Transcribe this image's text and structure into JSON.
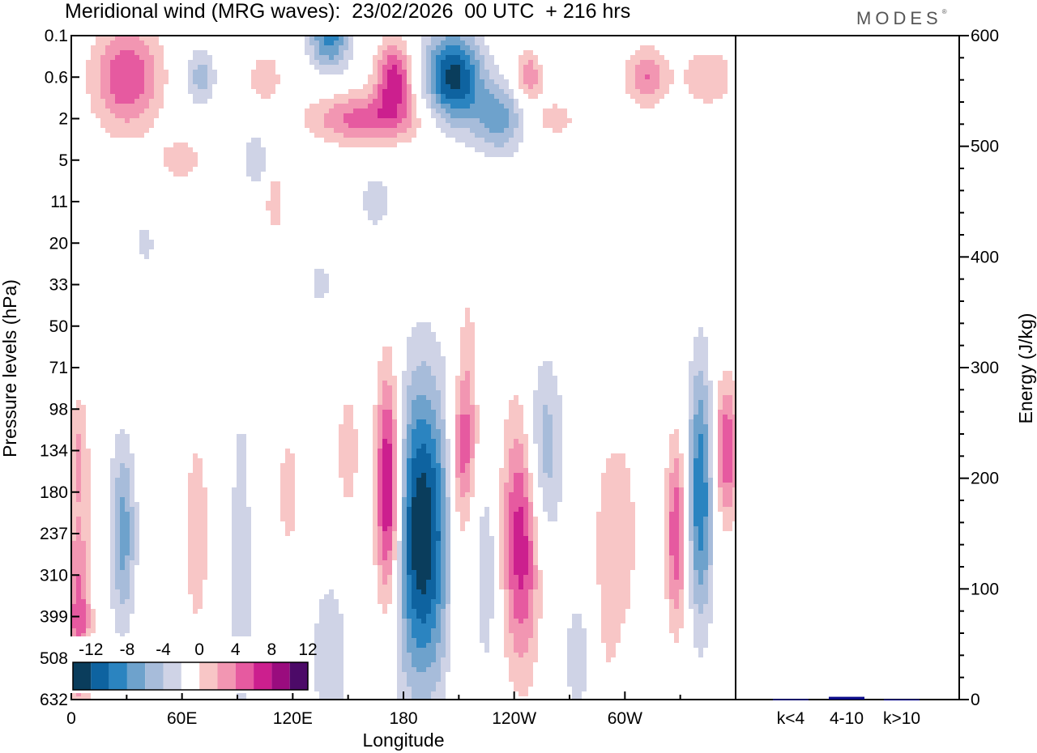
{
  "header": {
    "title": "Meridional wind (MRG waves):  23/02/2026  00 UTC  + 216 hrs",
    "logo_text": "MODES",
    "logo_mark": "®"
  },
  "colors": {
    "neg": [
      "#0a3d5c",
      "#0e63a0",
      "#2b84c0",
      "#6ea2cc",
      "#a7bcda",
      "#cfd3e6"
    ],
    "zero": "#ffffff",
    "pos": [
      "#f8c6c6",
      "#f296b2",
      "#e65aa0",
      "#cc1f8e",
      "#9a0c7e",
      "#4c0a68"
    ],
    "bar": "#0d0d8a"
  },
  "chart_data": [
    {
      "type": "heatmap",
      "title": "Meridional wind (MRG waves):  23/02/2026  00 UTC  + 216 hrs",
      "xlabel": "Longitude",
      "ylabel": "Pressure levels (hPa)",
      "x_ticks": [
        "0",
        "60E",
        "120E",
        "180",
        "120W",
        "60W"
      ],
      "x_tick_degrees": [
        0,
        60,
        120,
        180,
        240,
        300
      ],
      "xlim": [
        0,
        360
      ],
      "y_ticks": [
        "0.1",
        "0.6",
        "2",
        "5",
        "11",
        "20",
        "33",
        "50",
        "71",
        "98",
        "134",
        "180",
        "237",
        "310",
        "399",
        "508",
        "632"
      ],
      "colorbar": {
        "labels": [
          "-12",
          "-8",
          "-4",
          "0",
          "4",
          "8",
          "12"
        ],
        "levels": [
          -14,
          -12,
          -10,
          -8,
          -6,
          -4,
          -2,
          0,
          2,
          4,
          6,
          8,
          10,
          12
        ],
        "n_boxes": 13
      },
      "features": [
        {
          "lon": 190,
          "level": "237",
          "value": -14,
          "sx": 11,
          "sy": 2.6
        },
        {
          "lon": 207,
          "level": "0.6",
          "value": -13,
          "sx": 11,
          "sy": 0.8
        },
        {
          "lon": 172,
          "level": "180",
          "value": 13,
          "sx": 5,
          "sy": 2.0
        },
        {
          "lon": 244,
          "level": "237",
          "value": 10,
          "sx": 7,
          "sy": 2.2
        },
        {
          "lon": 341,
          "level": "180",
          "value": -10,
          "sx": 5,
          "sy": 2.2
        },
        {
          "lon": 328,
          "level": "237",
          "value": 8,
          "sx": 4,
          "sy": 1.6
        },
        {
          "lon": 355,
          "level": "134",
          "value": 8,
          "sx": 5,
          "sy": 1.2
        },
        {
          "lon": 28,
          "level": "237",
          "value": -7,
          "sx": 5,
          "sy": 1.6
        },
        {
          "lon": 4,
          "level": "399",
          "value": 7,
          "sx": 5,
          "sy": 1.8
        },
        {
          "lon": 4,
          "level": "134",
          "value": 4,
          "sx": 4,
          "sy": 1.0
        },
        {
          "lon": 212,
          "level": "134",
          "value": 6,
          "sx": 5,
          "sy": 1.1
        },
        {
          "lon": 255,
          "level": "134",
          "value": -6,
          "sx": 8,
          "sy": 1.6
        },
        {
          "lon": 92,
          "level": "310",
          "value": -4,
          "sx": 4,
          "sy": 3.0
        },
        {
          "lon": 68,
          "level": "237",
          "value": 3,
          "sx": 6,
          "sy": 2.2
        },
        {
          "lon": 118,
          "level": "180",
          "value": 3,
          "sx": 5,
          "sy": 1.2
        },
        {
          "lon": 150,
          "level": "134",
          "value": 4,
          "sx": 4,
          "sy": 1.0
        },
        {
          "lon": 225,
          "level": "310",
          "value": -4,
          "sx": 4,
          "sy": 1.6
        },
        {
          "lon": 210,
          "level": "310",
          "value": 3,
          "sx": 4,
          "sy": 2.6
        },
        {
          "lon": 290,
          "level": "310",
          "value": 3,
          "sx": 6,
          "sy": 2.6
        },
        {
          "lon": 300,
          "level": "237",
          "value": 3,
          "sx": 5,
          "sy": 1.6
        },
        {
          "lon": 140,
          "level": "508",
          "value": -3,
          "sx": 9,
          "sy": 1.8
        },
        {
          "lon": 275,
          "level": "508",
          "value": -3,
          "sx": 7,
          "sy": 1.3
        },
        {
          "lon": 30,
          "level": "0.6",
          "value": 8,
          "sx": 13,
          "sy": 0.9
        },
        {
          "lon": 70,
          "level": "0.6",
          "value": -5,
          "sx": 6,
          "sy": 0.5
        },
        {
          "lon": 105,
          "level": "0.6",
          "value": 4,
          "sx": 6,
          "sy": 0.4
        },
        {
          "lon": 140,
          "level": "0.1",
          "value": -9,
          "sx": 8,
          "sy": 0.6
        },
        {
          "lon": 175,
          "level": "0.6",
          "value": 9,
          "sx": 7,
          "sy": 0.6
        },
        {
          "lon": 160,
          "level": "2",
          "value": 7,
          "sx": 22,
          "sy": 0.45
        },
        {
          "lon": 232,
          "level": "2",
          "value": -7,
          "sx": 10,
          "sy": 0.6
        },
        {
          "lon": 248,
          "level": "0.6",
          "value": 6,
          "sx": 5,
          "sy": 0.45
        },
        {
          "lon": 312,
          "level": "0.6",
          "value": 6,
          "sx": 8,
          "sy": 0.5
        },
        {
          "lon": 345,
          "level": "0.6",
          "value": 4,
          "sx": 10,
          "sy": 0.5
        },
        {
          "lon": 100,
          "level": "5",
          "value": -4,
          "sx": 5,
          "sy": 0.45
        },
        {
          "lon": 60,
          "level": "5",
          "value": 3,
          "sx": 10,
          "sy": 0.4
        },
        {
          "lon": 262,
          "level": "2",
          "value": 3,
          "sx": 9,
          "sy": 0.35
        },
        {
          "lon": 165,
          "level": "11",
          "value": -3,
          "sx": 7,
          "sy": 0.6
        },
        {
          "lon": 110,
          "level": "11",
          "value": 3,
          "sx": 4,
          "sy": 0.7
        },
        {
          "lon": 215,
          "level": "71",
          "value": 3,
          "sx": 4,
          "sy": 1.6
        },
        {
          "lon": 135,
          "level": "33",
          "value": -3,
          "sx": 5,
          "sy": 0.4
        },
        {
          "lon": 40,
          "level": "20",
          "value": -3,
          "sx": 4,
          "sy": 0.4
        }
      ]
    },
    {
      "type": "bar",
      "categories": [
        "k<4",
        "4-10",
        "k>10"
      ],
      "values": [
        0.5,
        2.5,
        0.3
      ],
      "ylabel": "Energy (J/kg)",
      "ylim": [
        0,
        600
      ],
      "y_ticks": [
        "0",
        "100",
        "200",
        "300",
        "400",
        "500",
        "600"
      ],
      "y_tick_values": [
        0,
        100,
        200,
        300,
        400,
        500,
        600
      ]
    }
  ]
}
